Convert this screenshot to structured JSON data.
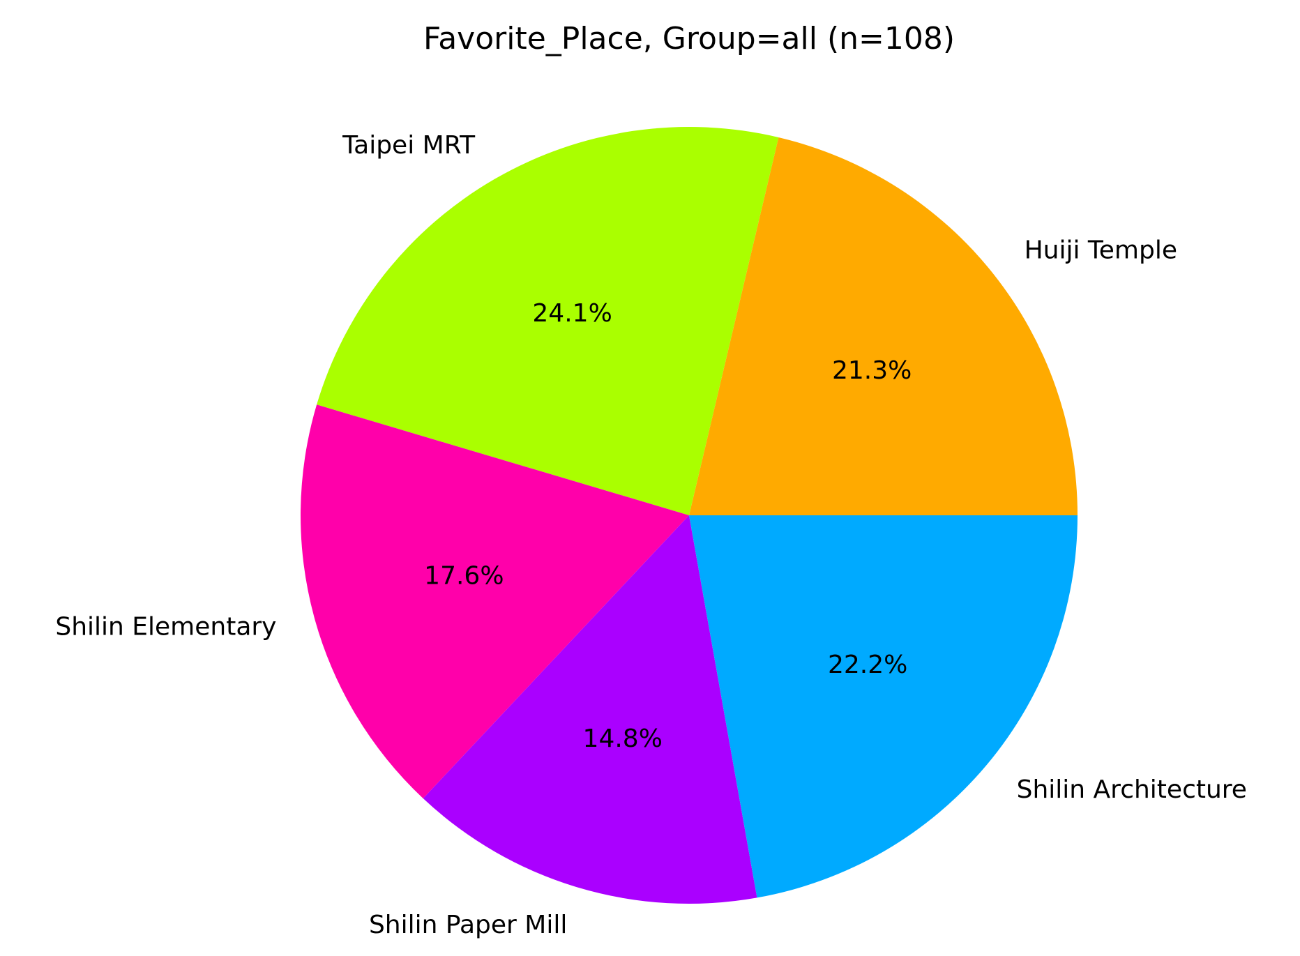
{
  "chart_data": {
    "type": "pie",
    "title": "Favorite_Place, Group=all (n=108)",
    "start_angle_deg": 0,
    "direction": "counterclockwise",
    "slices": [
      {
        "label": "Huiji Temple",
        "value": 21.3,
        "pct_label": "21.3%",
        "color": "#FFAA00"
      },
      {
        "label": "Taipei MRT",
        "value": 24.1,
        "pct_label": "24.1%",
        "color": "#AAFF00"
      },
      {
        "label": "Shilin Elementary",
        "value": 17.6,
        "pct_label": "17.6%",
        "color": "#FF00AA"
      },
      {
        "label": "Shilin Paper Mill",
        "value": 14.8,
        "pct_label": "14.8%",
        "color": "#AA00FF"
      },
      {
        "label": "Shilin Architecture",
        "value": 22.2,
        "pct_label": "22.2%",
        "color": "#00AAFF"
      }
    ]
  }
}
